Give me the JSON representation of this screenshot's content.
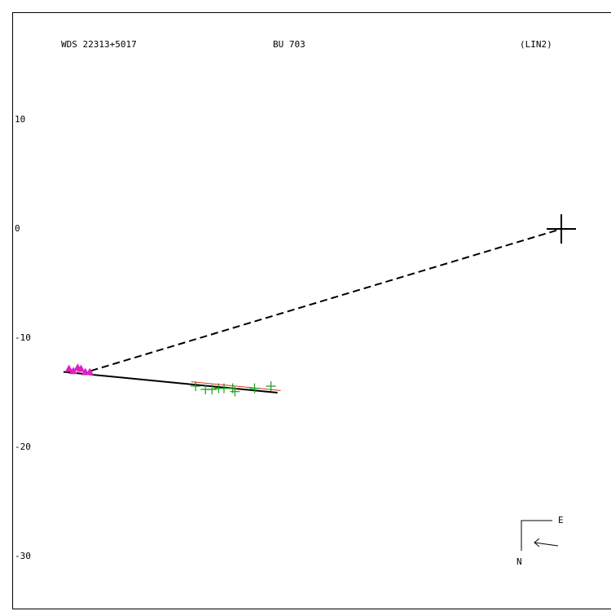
{
  "chart_data": {
    "type": "scatter",
    "header": [
      "WDS 22313+5017",
      "BU  703",
      "(LIN2)"
    ],
    "xlim": [
      -50.3,
      4.55
    ],
    "ylim": [
      -34.85,
      19.85
    ],
    "yticks": [
      10,
      0,
      -10,
      -20,
      -30
    ],
    "grid": false,
    "series": [
      {
        "color": "#e020c0",
        "marker": "triangle",
        "x": [
          -45.1,
          -44.7,
          -44.3,
          -44.0,
          -43.6,
          -43.2
        ],
        "values": [
          -12.8,
          -13.0,
          -12.7,
          -12.8,
          -13.1,
          -13.1
        ]
      },
      {
        "color": "#1a9a1a",
        "marker": "plus",
        "x": [
          -33.5,
          -32.6,
          -32.0,
          -31.4,
          -30.9,
          -30.1,
          -29.9,
          -28.1,
          -26.6
        ],
        "values": [
          -14.4,
          -14.7,
          -14.7,
          -14.6,
          -14.6,
          -14.6,
          -14.9,
          -14.6,
          -14.4
        ]
      }
    ],
    "lines": [
      {
        "color": "#000000",
        "dash": false,
        "width": 2,
        "x": [
          -45.6,
          -26.0
        ],
        "values": [
          -13.1,
          -15.0
        ]
      },
      {
        "color": "#e03020",
        "dash": false,
        "width": 1,
        "x": [
          -33.9,
          -25.7
        ],
        "values": [
          -14.0,
          -14.8
        ]
      },
      {
        "color": "#000000",
        "dash": true,
        "width": 2,
        "x": [
          -43.1,
          0
        ],
        "values": [
          -13.0,
          0
        ]
      }
    ],
    "primary": {
      "x": 0,
      "y": 0
    },
    "compass": {
      "east": "E",
      "north": "N"
    }
  }
}
